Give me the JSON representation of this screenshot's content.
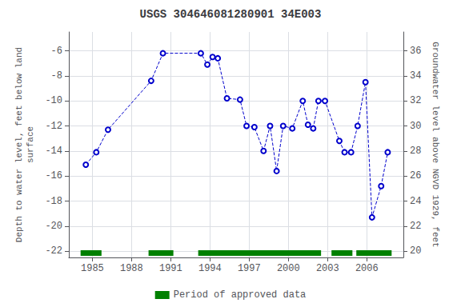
{
  "chart_data": {
    "type": "line",
    "title": "USGS 304646081280901 34E003",
    "ylabel": "Depth to water level, feet below land\nsurface",
    "y2label": "Groundwater level above NGVD 1929, feet",
    "x": [
      1984.5,
      1985.3,
      1986.2,
      1989.5,
      1990.4,
      1993.3,
      1993.8,
      1994.2,
      1994.6,
      1995.3,
      1996.3,
      1996.8,
      1997.4,
      1998.1,
      1998.6,
      1999.1,
      1999.6,
      2000.3,
      2001.1,
      2001.5,
      2001.9,
      2002.3,
      2002.8,
      2003.9,
      2004.3,
      2004.8,
      2005.3,
      2005.9,
      2006.4,
      2007.1,
      2007.6
    ],
    "values": [
      -15.1,
      -14.1,
      -12.3,
      -8.4,
      -6.2,
      -6.2,
      -7.1,
      -6.5,
      -6.6,
      -9.8,
      -9.9,
      -12.0,
      -12.1,
      -14.0,
      -12.0,
      -15.6,
      -12.0,
      -12.2,
      -10.0,
      -11.9,
      -12.2,
      -10.0,
      -10.0,
      -13.2,
      -14.1,
      -14.1,
      -12.0,
      -8.5,
      -19.3,
      -16.8,
      -14.1
    ],
    "color": "#0000CC",
    "line_style": "dashed",
    "marker": "circle-open",
    "xlim": [
      1983.2,
      2008.8
    ],
    "xticks": [
      1985,
      1988,
      1991,
      1994,
      1997,
      2000,
      2003,
      2006
    ],
    "ylim": [
      -22.5,
      -4.5
    ],
    "yticks": [
      -22,
      -20,
      -18,
      -16,
      -14,
      -12,
      -10,
      -8,
      -6
    ],
    "y2lim": [
      19.5,
      37.5
    ],
    "y2ticks": [
      36,
      34,
      32,
      30,
      28,
      26,
      24,
      22,
      20
    ],
    "periods": {
      "name": "Period of approved data",
      "color": "#008000",
      "ranges": [
        [
          1984.1,
          1985.7
        ],
        [
          1989.3,
          1991.2
        ],
        [
          1993.1,
          2002.5
        ],
        [
          2003.3,
          2004.9
        ],
        [
          2005.2,
          2007.9
        ]
      ]
    },
    "grid": true,
    "legend": "bottom"
  }
}
